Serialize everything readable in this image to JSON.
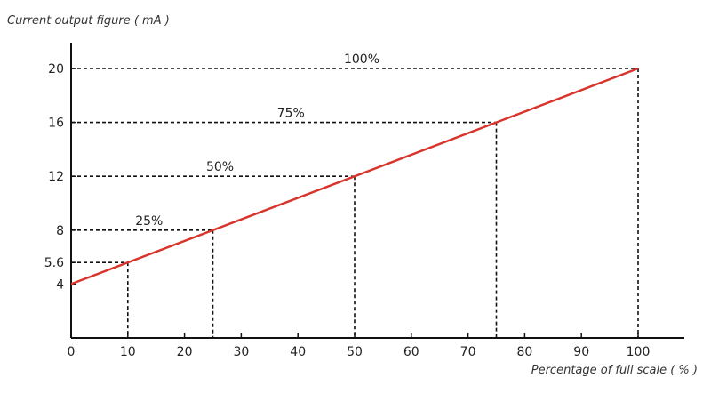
{
  "chart_data": {
    "type": "line",
    "title": "",
    "ylabel": "Current output figure ( mA )",
    "xlabel": "Percentage of full scale ( % )",
    "xlim": [
      0,
      100
    ],
    "ylim": [
      0,
      20
    ],
    "xticks": [
      0,
      10,
      20,
      30,
      40,
      50,
      60,
      70,
      80,
      90,
      100
    ],
    "yticks": [
      4,
      5.6,
      8,
      12,
      16,
      20
    ],
    "series": [
      {
        "x": [
          0,
          100
        ],
        "y": [
          4,
          20
        ],
        "color": "#d9342b"
      }
    ],
    "reference_points": [
      {
        "x": 10,
        "y": 5.6,
        "label": ""
      },
      {
        "x": 25,
        "y": 8,
        "label": "25%"
      },
      {
        "x": 50,
        "y": 12,
        "label": "50%"
      },
      {
        "x": 75,
        "y": 16,
        "label": "75%"
      },
      {
        "x": 100,
        "y": 20,
        "label": "100%"
      }
    ],
    "grid": false,
    "legend": "none"
  },
  "colors": {
    "axis": "#111111",
    "guide": "#111111",
    "line": "#d9342b"
  }
}
